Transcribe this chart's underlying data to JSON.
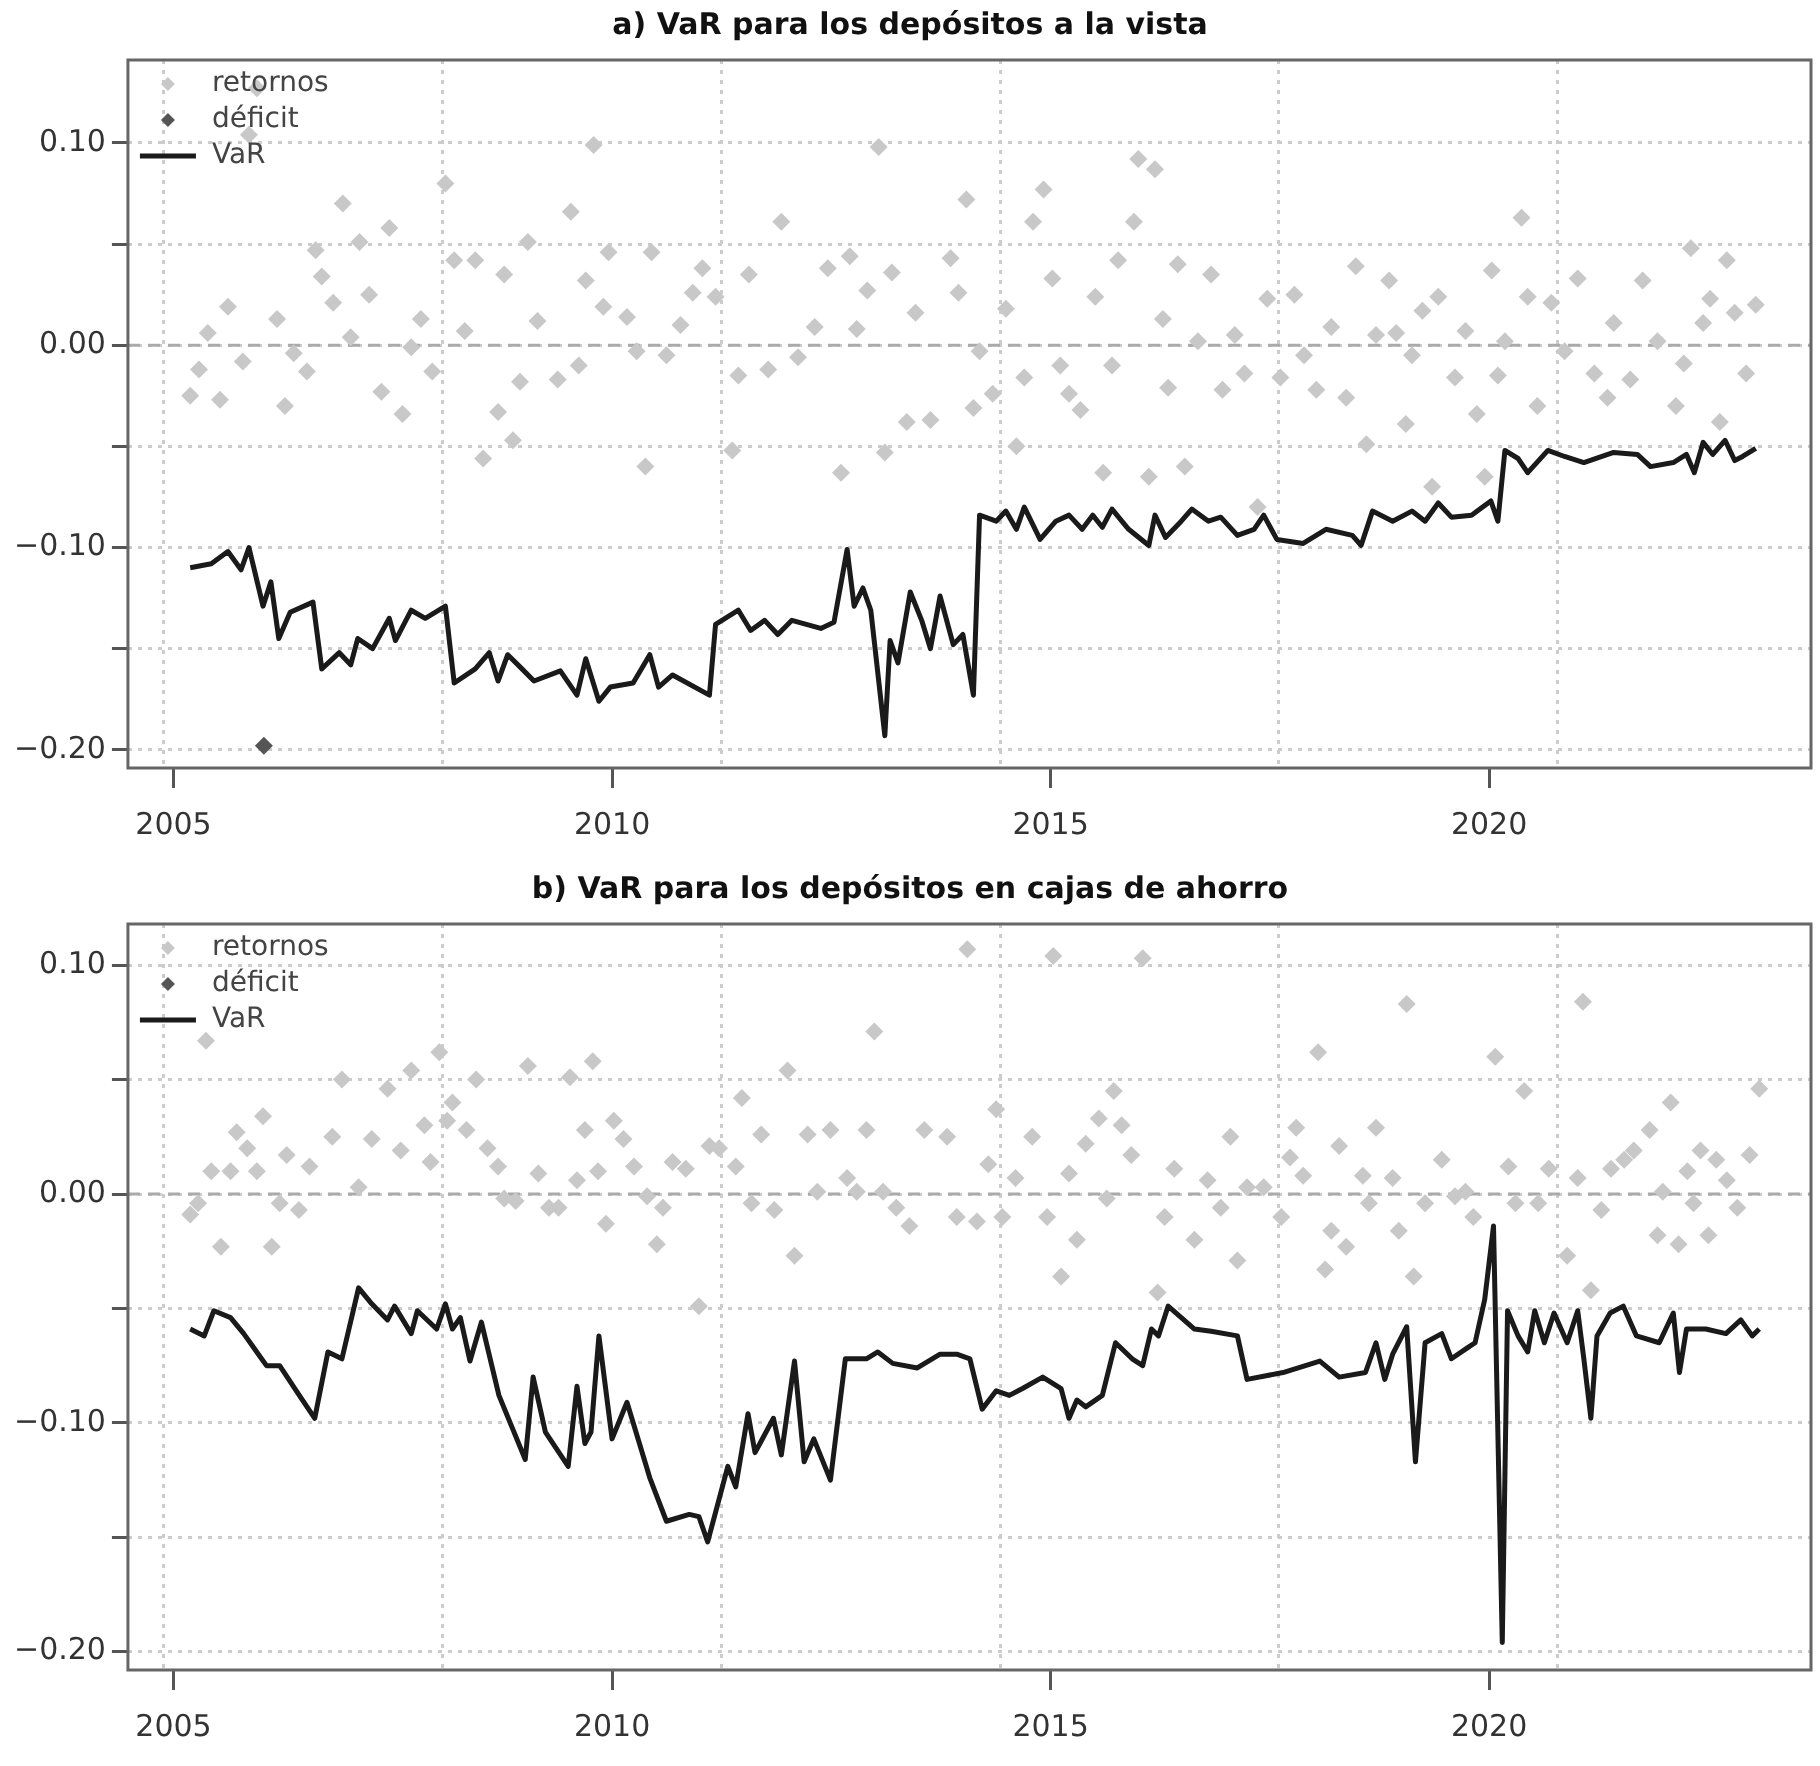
{
  "chart_data": [
    {
      "type": "scatter",
      "title": "a) VaR para los depósitos a la vista",
      "xlim": [
        2004.48,
        2023.67
      ],
      "ylim": [
        -0.209,
        0.141
      ],
      "xticks": [
        {
          "value": 2004.89,
          "label": null
        },
        2005,
        {
          "value": 2008.07,
          "label": null
        },
        2010,
        {
          "value": 2011.25,
          "label": null
        },
        {
          "value": 2014.43,
          "label": null
        },
        2015,
        {
          "value": 2017.6,
          "label": null
        },
        2020,
        {
          "value": 2020.78,
          "label": null
        }
      ],
      "yticks": [
        {
          "value": -0.2,
          "label": "−0.20"
        },
        {
          "value": -0.15,
          "label": null
        },
        {
          "value": -0.1,
          "label": "−0.10"
        },
        {
          "value": -0.05,
          "label": null
        },
        {
          "value": 0,
          "label": "0.00"
        },
        {
          "value": 0.05,
          "label": null
        },
        {
          "value": 0.1,
          "label": "0.10"
        }
      ],
      "grid": true,
      "legend": "top left",
      "ref_lines": [
        {
          "axis": "y",
          "value": 0,
          "color": "#aaaaaa",
          "line_style": "dashed"
        }
      ],
      "series": [
        {
          "name": "retornos",
          "marker": "diamond",
          "color": "#c8c8c8",
          "x": [
            2005.19,
            2005.29,
            2005.39,
            2005.53,
            2005.62,
            2005.79,
            2005.86,
            2005.95,
            2006.18,
            2006.27,
            2006.37,
            2006.52,
            2006.62,
            2006.69,
            2006.82,
            2006.93,
            2007.02,
            2007.12,
            2007.23,
            2007.37,
            2007.46,
            2007.61,
            2007.71,
            2007.82,
            2007.95,
            2008.1,
            2008.2,
            2008.32,
            2008.44,
            2008.53,
            2008.7,
            2008.77,
            2008.87,
            2008.95,
            2009.04,
            2009.15,
            2009.38,
            2009.53,
            2009.62,
            2009.7,
            2009.79,
            2009.9,
            2009.96,
            2010.17,
            2010.28,
            2010.38,
            2010.45,
            2010.62,
            2010.78,
            2010.92,
            2011.03,
            2011.18,
            2011.37,
            2011.44,
            2011.56,
            2011.78,
            2011.93,
            2012.12,
            2012.31,
            2012.46,
            2012.61,
            2012.71,
            2012.79,
            2012.91,
            2013.04,
            2013.11,
            2013.19,
            2013.36,
            2013.46,
            2013.63,
            2013.86,
            2013.95,
            2014.04,
            2014.12,
            2014.19,
            2014.34,
            2014.49,
            2014.61,
            2014.7,
            2014.8,
            2014.92,
            2015.02,
            2015.11,
            2015.21,
            2015.34,
            2015.51,
            2015.6,
            2015.7,
            2015.77,
            2015.95,
            2016,
            2016.12,
            2016.19,
            2016.28,
            2016.34,
            2016.45,
            2016.53,
            2016.68,
            2016.83,
            2016.96,
            2017.1,
            2017.21,
            2017.36,
            2017.47,
            2017.62,
            2017.78,
            2017.89,
            2018.03,
            2018.2,
            2018.37,
            2018.48,
            2018.6,
            2018.71,
            2018.86,
            2018.94,
            2019.05,
            2019.12,
            2019.24,
            2019.35,
            2019.42,
            2019.61,
            2019.73,
            2019.86,
            2019.95,
            2020.03,
            2020.1,
            2020.18,
            2020.37,
            2020.44,
            2020.55,
            2020.71,
            2020.86,
            2021.01,
            2021.2,
            2021.35,
            2021.42,
            2021.61,
            2021.75,
            2021.92,
            2022.13,
            2022.22,
            2022.3,
            2022.44,
            2022.52,
            2022.63,
            2022.71,
            2022.8,
            2022.93,
            2023.04
          ],
          "values": [
            -0.025,
            -0.012,
            0.006,
            -0.027,
            0.019,
            -0.008,
            0.104,
            0.127,
            0.013,
            -0.03,
            -0.004,
            -0.013,
            0.047,
            0.034,
            0.021,
            0.07,
            0.004,
            0.051,
            0.025,
            -0.023,
            0.058,
            -0.034,
            -0.001,
            0.013,
            -0.013,
            0.08,
            0.042,
            0.007,
            0.042,
            -0.056,
            -0.033,
            0.035,
            -0.047,
            -0.018,
            0.051,
            0.012,
            -0.017,
            0.066,
            -0.01,
            0.032,
            0.099,
            0.019,
            0.046,
            0.014,
            -0.003,
            -0.06,
            0.046,
            -0.005,
            0.01,
            0.026,
            0.038,
            0.024,
            -0.052,
            -0.015,
            0.035,
            -0.012,
            0.061,
            -0.006,
            0.009,
            0.038,
            -0.063,
            0.044,
            0.008,
            0.027,
            0.098,
            -0.053,
            0.036,
            -0.038,
            0.016,
            -0.037,
            0.043,
            0.026,
            0.072,
            -0.031,
            -0.003,
            -0.024,
            0.018,
            -0.05,
            -0.016,
            0.061,
            0.077,
            0.033,
            -0.01,
            -0.024,
            -0.032,
            0.024,
            -0.063,
            -0.01,
            0.042,
            0.061,
            0.092,
            -0.065,
            0.087,
            0.013,
            -0.021,
            0.04,
            -0.06,
            0.002,
            0.035,
            -0.022,
            0.005,
            -0.014,
            -0.08,
            0.023,
            -0.016,
            0.025,
            -0.005,
            -0.022,
            0.009,
            -0.026,
            0.039,
            -0.049,
            0.005,
            0.032,
            0.006,
            -0.039,
            -0.005,
            0.017,
            -0.07,
            0.024,
            -0.016,
            0.007,
            -0.034,
            -0.065,
            0.037,
            -0.015,
            0.002,
            0.063,
            0.024,
            -0.03,
            0.021,
            -0.003,
            0.033,
            -0.014,
            -0.026,
            0.011,
            -0.017,
            0.032,
            0.002,
            -0.03,
            -0.009,
            0.048,
            0.011,
            0.023,
            -0.038,
            0.042,
            0.016,
            -0.014,
            0.02
          ]
        },
        {
          "name": "déficit",
          "marker": "diamond",
          "color": "#555555",
          "x": [
            2006.03
          ],
          "values": [
            -0.198
          ]
        },
        {
          "name": "VaR",
          "type": "line",
          "marker": "none",
          "line_style": "solid",
          "color": "#1a1a1a",
          "x": [
            2005.19,
            2005.43,
            2005.62,
            2005.77,
            2005.86,
            2006.02,
            2006.11,
            2006.2,
            2006.33,
            2006.59,
            2006.69,
            2006.89,
            2007.02,
            2007.1,
            2007.27,
            2007.46,
            2007.53,
            2007.71,
            2007.87,
            2008.1,
            2008.2,
            2008.44,
            2008.6,
            2008.7,
            2008.81,
            2008.95,
            2009.11,
            2009.41,
            2009.6,
            2009.7,
            2009.85,
            2009.98,
            2010.24,
            2010.43,
            2010.53,
            2010.69,
            2011.11,
            2011.18,
            2011.44,
            2011.58,
            2011.74,
            2011.89,
            2012.05,
            2012.38,
            2012.53,
            2012.68,
            2012.76,
            2012.86,
            2012.95,
            2013.11,
            2013.17,
            2013.26,
            2013.4,
            2013.53,
            2013.63,
            2013.74,
            2013.89,
            2014,
            2014.12,
            2014.19,
            2014.38,
            2014.49,
            2014.61,
            2014.7,
            2014.88,
            2015.06,
            2015.21,
            2015.36,
            2015.48,
            2015.59,
            2015.7,
            2015.89,
            2016.12,
            2016.19,
            2016.31,
            2016.49,
            2016.61,
            2016.8,
            2016.94,
            2017.13,
            2017.32,
            2017.43,
            2017.58,
            2017.88,
            2018.14,
            2018.44,
            2018.54,
            2018.67,
            2018.9,
            2019.12,
            2019.27,
            2019.42,
            2019.57,
            2019.8,
            2020.02,
            2020.1,
            2020.18,
            2020.33,
            2020.44,
            2020.67,
            2020.86,
            2021.08,
            2021.42,
            2021.69,
            2021.84,
            2022.1,
            2022.25,
            2022.34,
            2022.44,
            2022.55,
            2022.69,
            2022.8,
            2022.89,
            2023.04
          ],
          "values": [
            -0.11,
            -0.108,
            -0.102,
            -0.111,
            -0.1,
            -0.129,
            -0.117,
            -0.145,
            -0.132,
            -0.127,
            -0.16,
            -0.152,
            -0.158,
            -0.145,
            -0.15,
            -0.135,
            -0.146,
            -0.131,
            -0.135,
            -0.129,
            -0.167,
            -0.16,
            -0.152,
            -0.166,
            -0.153,
            -0.159,
            -0.166,
            -0.161,
            -0.173,
            -0.155,
            -0.176,
            -0.169,
            -0.167,
            -0.153,
            -0.169,
            -0.163,
            -0.173,
            -0.138,
            -0.131,
            -0.141,
            -0.136,
            -0.143,
            -0.136,
            -0.14,
            -0.137,
            -0.101,
            -0.129,
            -0.12,
            -0.131,
            -0.193,
            -0.146,
            -0.157,
            -0.122,
            -0.136,
            -0.15,
            -0.124,
            -0.148,
            -0.143,
            -0.173,
            -0.084,
            -0.087,
            -0.082,
            -0.091,
            -0.08,
            -0.096,
            -0.087,
            -0.084,
            -0.091,
            -0.084,
            -0.09,
            -0.081,
            -0.091,
            -0.099,
            -0.084,
            -0.095,
            -0.087,
            -0.081,
            -0.087,
            -0.085,
            -0.094,
            -0.091,
            -0.084,
            -0.096,
            -0.098,
            -0.091,
            -0.094,
            -0.099,
            -0.082,
            -0.087,
            -0.082,
            -0.087,
            -0.078,
            -0.085,
            -0.084,
            -0.077,
            -0.087,
            -0.052,
            -0.056,
            -0.063,
            -0.052,
            -0.055,
            -0.058,
            -0.053,
            -0.054,
            -0.06,
            -0.058,
            -0.054,
            -0.063,
            -0.048,
            -0.054,
            -0.047,
            -0.057,
            -0.055,
            -0.051
          ]
        }
      ]
    },
    {
      "type": "scatter",
      "title": "b) VaR para los depósitos en cajas de ahorro",
      "xlim": [
        2004.48,
        2023.67
      ],
      "ylim": [
        -0.208,
        0.118
      ],
      "xticks": [
        {
          "value": 2004.89,
          "label": null
        },
        2005,
        {
          "value": 2008.07,
          "label": null
        },
        2010,
        {
          "value": 2011.25,
          "label": null
        },
        {
          "value": 2014.43,
          "label": null
        },
        2015,
        {
          "value": 2017.6,
          "label": null
        },
        2020,
        {
          "value": 2020.78,
          "label": null
        }
      ],
      "yticks": [
        {
          "value": -0.2,
          "label": "−0.20"
        },
        {
          "value": -0.15,
          "label": null
        },
        {
          "value": -0.1,
          "label": "−0.10"
        },
        {
          "value": -0.05,
          "label": null
        },
        {
          "value": 0,
          "label": "0.00"
        },
        {
          "value": 0.05,
          "label": null
        },
        {
          "value": 0.1,
          "label": "0.10"
        }
      ],
      "grid": true,
      "legend": "top left",
      "ref_lines": [
        {
          "axis": "y",
          "value": 0,
          "color": "#aaaaaa",
          "line_style": "dashed"
        }
      ],
      "series": [
        {
          "name": "retornos",
          "marker": "diamond",
          "color": "#c8c8c8",
          "x": [
            2005.19,
            2005.28,
            2005.37,
            2005.43,
            2005.54,
            2005.65,
            2005.72,
            2005.84,
            2005.95,
            2006.02,
            2006.12,
            2006.21,
            2006.29,
            2006.43,
            2006.55,
            2006.81,
            2006.92,
            2007.11,
            2007.26,
            2007.44,
            2007.59,
            2007.71,
            2007.86,
            2007.93,
            2008.03,
            2008.12,
            2008.18,
            2008.34,
            2008.45,
            2008.58,
            2008.7,
            2008.77,
            2008.9,
            2009.04,
            2009.16,
            2009.28,
            2009.39,
            2009.52,
            2009.6,
            2009.69,
            2009.78,
            2009.84,
            2009.93,
            2010.02,
            2010.13,
            2010.25,
            2010.4,
            2010.51,
            2010.58,
            2010.69,
            2010.84,
            2010.99,
            2011.11,
            2011.22,
            2011.41,
            2011.48,
            2011.59,
            2011.7,
            2011.85,
            2012,
            2012.08,
            2012.23,
            2012.34,
            2012.49,
            2012.68,
            2012.79,
            2012.9,
            2012.99,
            2013.09,
            2013.24,
            2013.39,
            2013.56,
            2013.82,
            2013.93,
            2014.05,
            2014.16,
            2014.29,
            2014.38,
            2014.45,
            2014.6,
            2014.79,
            2014.96,
            2015.03,
            2015.12,
            2015.21,
            2015.3,
            2015.4,
            2015.55,
            2015.64,
            2015.72,
            2015.81,
            2015.92,
            2016.05,
            2016.22,
            2016.3,
            2016.41,
            2016.64,
            2016.79,
            2016.94,
            2017.05,
            2017.13,
            2017.24,
            2017.43,
            2017.63,
            2017.73,
            2017.8,
            2017.88,
            2018.05,
            2018.13,
            2018.2,
            2018.29,
            2018.37,
            2018.56,
            2018.63,
            2018.71,
            2018.9,
            2018.97,
            2019.06,
            2019.14,
            2019.27,
            2019.46,
            2019.61,
            2019.73,
            2019.82,
            2020.07,
            2020.22,
            2020.3,
            2020.4,
            2020.56,
            2020.68,
            2020.89,
            2021.01,
            2021.07,
            2021.16,
            2021.28,
            2021.39,
            2021.54,
            2021.65,
            2021.83,
            2021.92,
            2021.98,
            2022.07,
            2022.16,
            2022.26,
            2022.33,
            2022.41,
            2022.5,
            2022.59,
            2022.71,
            2022.83,
            2022.97,
            2023.08
          ],
          "values": [
            -0.009,
            -0.004,
            0.067,
            0.01,
            -0.023,
            0.01,
            0.027,
            0.02,
            0.01,
            0.034,
            -0.023,
            -0.004,
            0.017,
            -0.007,
            0.012,
            0.025,
            0.05,
            0.003,
            0.024,
            0.046,
            0.019,
            0.054,
            0.03,
            0.014,
            0.062,
            0.032,
            0.04,
            0.028,
            0.05,
            0.02,
            0.012,
            -0.002,
            -0.003,
            0.056,
            0.009,
            -0.006,
            -0.006,
            0.051,
            0.006,
            0.028,
            0.058,
            0.01,
            -0.013,
            0.032,
            0.024,
            0.012,
            -0.001,
            -0.022,
            -0.006,
            0.014,
            0.011,
            -0.049,
            0.021,
            0.02,
            0.012,
            0.042,
            -0.004,
            0.026,
            -0.007,
            0.054,
            -0.027,
            0.026,
            0.001,
            0.028,
            0.007,
            0.001,
            0.028,
            0.071,
            0.001,
            -0.006,
            -0.014,
            0.028,
            0.025,
            -0.01,
            0.107,
            -0.012,
            0.013,
            0.037,
            -0.01,
            0.007,
            0.025,
            -0.01,
            0.104,
            -0.036,
            0.009,
            -0.02,
            0.022,
            0.033,
            -0.002,
            0.045,
            0.03,
            0.017,
            0.103,
            -0.043,
            -0.01,
            0.011,
            -0.02,
            0.006,
            -0.006,
            0.025,
            -0.029,
            0.003,
            0.003,
            -0.01,
            0.016,
            0.029,
            0.008,
            0.062,
            -0.033,
            -0.016,
            0.021,
            -0.023,
            0.008,
            -0.004,
            0.029,
            0.007,
            -0.016,
            0.083,
            -0.036,
            -0.004,
            0.015,
            -0.001,
            0.001,
            -0.01,
            0.06,
            0.012,
            -0.004,
            0.045,
            -0.004,
            0.011,
            -0.027,
            0.007,
            0.084,
            -0.042,
            -0.007,
            0.011,
            0.015,
            0.019,
            0.028,
            -0.018,
            0.001,
            0.04,
            -0.022,
            0.01,
            -0.004,
            0.019,
            -0.018,
            0.015,
            0.006,
            -0.006,
            0.017,
            0.046
          ]
        },
        {
          "name": "déficit",
          "marker": "diamond",
          "color": "#555555"
        },
        {
          "name": "VaR",
          "type": "line",
          "marker": "none",
          "line_style": "solid",
          "color": "#1a1a1a",
          "x": [
            2005.19,
            2005.35,
            2005.46,
            2005.65,
            2005.8,
            2006.06,
            2006.21,
            2006.4,
            2006.61,
            2006.76,
            2006.92,
            2007.11,
            2007.26,
            2007.44,
            2007.52,
            2007.71,
            2007.78,
            2008,
            2008.1,
            2008.18,
            2008.27,
            2008.38,
            2008.51,
            2008.71,
            2009.01,
            2009.1,
            2009.24,
            2009.5,
            2009.6,
            2009.69,
            2009.76,
            2009.85,
            2010,
            2010.17,
            2010.43,
            2010.62,
            2010.88,
            2010.99,
            2011.09,
            2011.32,
            2011.41,
            2011.55,
            2011.63,
            2011.84,
            2011.93,
            2012.08,
            2012.19,
            2012.3,
            2012.49,
            2012.66,
            2012.9,
            2013.03,
            2013.2,
            2013.48,
            2013.74,
            2013.93,
            2014.08,
            2014.22,
            2014.38,
            2014.53,
            2014.68,
            2014.91,
            2015.12,
            2015.21,
            2015.3,
            2015.4,
            2015.59,
            2015.74,
            2015.93,
            2016.05,
            2016.15,
            2016.23,
            2016.34,
            2016.64,
            2016.83,
            2017.13,
            2017.24,
            2017.65,
            2018.07,
            2018.29,
            2018.59,
            2018.71,
            2018.81,
            2018.9,
            2019.06,
            2019.16,
            2019.27,
            2019.46,
            2019.57,
            2019.76,
            2019.84,
            2019.95,
            2020.05,
            2020.15,
            2020.21,
            2020.33,
            2020.44,
            2020.52,
            2020.63,
            2020.74,
            2020.89,
            2021.01,
            2021.08,
            2021.16,
            2021.23,
            2021.38,
            2021.53,
            2021.68,
            2021.94,
            2022.1,
            2022.17,
            2022.25,
            2022.47,
            2022.7,
            2022.87,
            2023,
            2023.08
          ],
          "values": [
            -0.059,
            -0.062,
            -0.051,
            -0.054,
            -0.061,
            -0.075,
            -0.075,
            -0.086,
            -0.098,
            -0.069,
            -0.072,
            -0.041,
            -0.048,
            -0.055,
            -0.049,
            -0.061,
            -0.051,
            -0.059,
            -0.048,
            -0.059,
            -0.054,
            -0.073,
            -0.056,
            -0.088,
            -0.116,
            -0.08,
            -0.104,
            -0.119,
            -0.084,
            -0.109,
            -0.104,
            -0.062,
            -0.107,
            -0.091,
            -0.124,
            -0.143,
            -0.14,
            -0.141,
            -0.152,
            -0.119,
            -0.128,
            -0.096,
            -0.113,
            -0.098,
            -0.114,
            -0.073,
            -0.117,
            -0.107,
            -0.125,
            -0.072,
            -0.072,
            -0.069,
            -0.074,
            -0.076,
            -0.07,
            -0.07,
            -0.072,
            -0.094,
            -0.086,
            -0.088,
            -0.085,
            -0.08,
            -0.085,
            -0.098,
            -0.09,
            -0.093,
            -0.088,
            -0.065,
            -0.072,
            -0.075,
            -0.059,
            -0.062,
            -0.049,
            -0.059,
            -0.06,
            -0.062,
            -0.081,
            -0.078,
            -0.073,
            -0.08,
            -0.078,
            -0.065,
            -0.081,
            -0.07,
            -0.058,
            -0.117,
            -0.065,
            -0.061,
            -0.072,
            -0.067,
            -0.065,
            -0.046,
            -0.014,
            -0.196,
            -0.051,
            -0.062,
            -0.069,
            -0.051,
            -0.065,
            -0.052,
            -0.065,
            -0.051,
            -0.072,
            -0.098,
            -0.062,
            -0.052,
            -0.049,
            -0.062,
            -0.065,
            -0.052,
            -0.078,
            -0.059,
            -0.059,
            -0.061,
            -0.055,
            -0.062,
            -0.059
          ]
        }
      ]
    }
  ]
}
